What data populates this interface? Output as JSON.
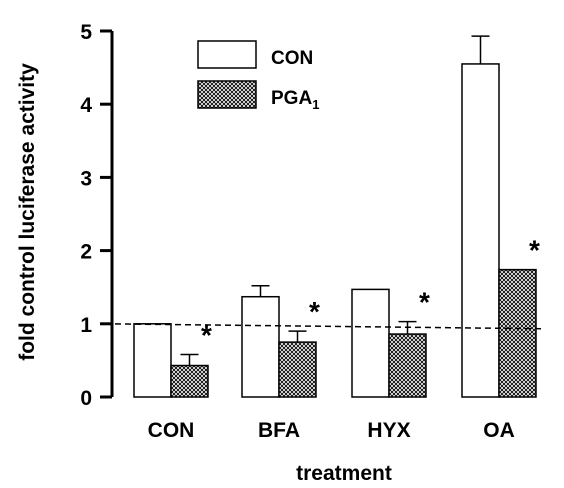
{
  "chart_data": {
    "type": "bar",
    "xlabel": "treatment",
    "ylabel": "fold control luciferase activity",
    "ylim": [
      0,
      5
    ],
    "yticks": [
      "0",
      "1",
      "2",
      "3",
      "4",
      "5"
    ],
    "categories": [
      "CON",
      "BFA",
      "HYX",
      "OA"
    ],
    "series": [
      {
        "name": "CON",
        "values": [
          1.0,
          1.37,
          1.47,
          4.55
        ],
        "errors": [
          0.0,
          0.15,
          0.0,
          0.38
        ]
      },
      {
        "name": "PGA1",
        "values": [
          0.43,
          0.75,
          0.86,
          1.74
        ],
        "errors": [
          0.15,
          0.15,
          0.17,
          0.0
        ]
      }
    ],
    "significance": [
      "*",
      "*",
      "*",
      "*"
    ],
    "reference_line": 1,
    "legend_position": "top-left",
    "series_styles": {
      "CON": "open",
      "PGA1": "crosshatch"
    },
    "colors": {
      "ink": "#000000",
      "background": "#ffffff"
    }
  }
}
